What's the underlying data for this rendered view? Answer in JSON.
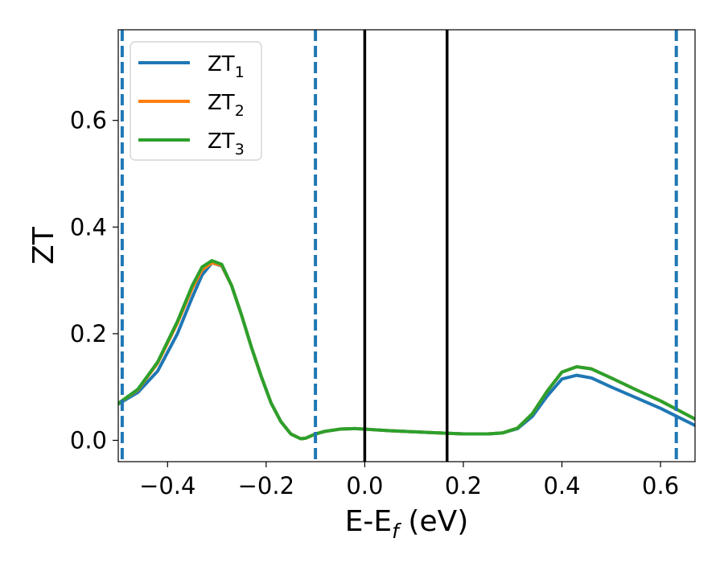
{
  "chart_data": {
    "type": "line",
    "xlabel": {
      "main": "E-E",
      "sub": "f",
      "tail": " (eV)"
    },
    "ylabel": "ZT",
    "xlim": [
      -0.5,
      0.67
    ],
    "ylim": [
      -0.04,
      0.77
    ],
    "x_ticks": [
      -0.4,
      -0.2,
      0.0,
      0.2,
      0.4,
      0.6
    ],
    "x_tick_labels": [
      "−0.4",
      "−0.2",
      "0.0",
      "0.2",
      "0.4",
      "0.6"
    ],
    "y_ticks": [
      0.0,
      0.2,
      0.4,
      0.6
    ],
    "y_tick_labels": [
      "0.0",
      "0.2",
      "0.4",
      "0.6"
    ],
    "grid": false,
    "legend": "top-left",
    "vlines": [
      {
        "x": -0.492,
        "style": "dashed",
        "color": "#1f77b4"
      },
      {
        "x": -0.1,
        "style": "dashed",
        "color": "#1f77b4"
      },
      {
        "x": 0.632,
        "style": "dashed",
        "color": "#1f77b4"
      },
      {
        "x": 0.0,
        "style": "solid",
        "color": "#000000"
      },
      {
        "x": 0.167,
        "style": "solid",
        "color": "#000000"
      }
    ],
    "series": [
      {
        "name": "ZT",
        "sub": "1",
        "color": "#1f77b4",
        "x": [
          -0.5,
          -0.46,
          -0.42,
          -0.38,
          -0.35,
          -0.33,
          -0.31,
          -0.29,
          -0.27,
          -0.25,
          -0.23,
          -0.21,
          -0.19,
          -0.17,
          -0.15,
          -0.13,
          -0.12,
          -0.11,
          -0.1,
          -0.08,
          -0.05,
          -0.02,
          0.0,
          0.05,
          0.1,
          0.15,
          0.2,
          0.25,
          0.28,
          0.31,
          0.34,
          0.37,
          0.4,
          0.43,
          0.46,
          0.5,
          0.55,
          0.6,
          0.67
        ],
        "y": [
          0.068,
          0.09,
          0.13,
          0.2,
          0.268,
          0.31,
          0.333,
          0.327,
          0.29,
          0.235,
          0.175,
          0.12,
          0.07,
          0.035,
          0.012,
          0.003,
          0.004,
          0.008,
          0.012,
          0.017,
          0.021,
          0.022,
          0.021,
          0.018,
          0.016,
          0.014,
          0.012,
          0.012,
          0.014,
          0.022,
          0.045,
          0.083,
          0.115,
          0.122,
          0.117,
          0.1,
          0.08,
          0.06,
          0.028
        ]
      },
      {
        "name": "ZT",
        "sub": "2",
        "color": "#ff7f0e",
        "x": [
          -0.5,
          -0.46,
          -0.42,
          -0.38,
          -0.35,
          -0.33,
          -0.31,
          -0.29,
          -0.27,
          -0.25,
          -0.23,
          -0.21,
          -0.19,
          -0.17,
          -0.15,
          -0.13,
          -0.12,
          -0.11,
          -0.1,
          -0.08,
          -0.05,
          -0.02,
          0.0,
          0.05,
          0.1,
          0.15,
          0.2,
          0.25,
          0.28,
          0.31,
          0.34,
          0.37,
          0.4,
          0.43,
          0.46,
          0.5,
          0.55,
          0.6,
          0.67
        ],
        "y": [
          0.069,
          0.095,
          0.145,
          0.22,
          0.285,
          0.32,
          0.333,
          0.328,
          0.29,
          0.235,
          0.175,
          0.12,
          0.07,
          0.035,
          0.012,
          0.003,
          0.004,
          0.008,
          0.012,
          0.017,
          0.021,
          0.022,
          0.021,
          0.018,
          0.016,
          0.014,
          0.012,
          0.012,
          0.014,
          0.023,
          0.05,
          0.092,
          0.128,
          0.138,
          0.134,
          0.117,
          0.095,
          0.074,
          0.04
        ]
      },
      {
        "name": "ZT",
        "sub": "3",
        "color": "#2ca02c",
        "x": [
          -0.5,
          -0.46,
          -0.42,
          -0.38,
          -0.35,
          -0.33,
          -0.31,
          -0.29,
          -0.27,
          -0.25,
          -0.23,
          -0.21,
          -0.19,
          -0.17,
          -0.15,
          -0.13,
          -0.12,
          -0.11,
          -0.1,
          -0.08,
          -0.05,
          -0.02,
          0.0,
          0.05,
          0.1,
          0.15,
          0.2,
          0.25,
          0.28,
          0.31,
          0.34,
          0.37,
          0.4,
          0.43,
          0.46,
          0.5,
          0.55,
          0.6,
          0.67
        ],
        "y": [
          0.069,
          0.096,
          0.147,
          0.223,
          0.29,
          0.325,
          0.337,
          0.33,
          0.29,
          0.235,
          0.175,
          0.12,
          0.07,
          0.035,
          0.012,
          0.003,
          0.004,
          0.008,
          0.012,
          0.017,
          0.021,
          0.022,
          0.021,
          0.018,
          0.016,
          0.014,
          0.012,
          0.012,
          0.014,
          0.023,
          0.05,
          0.092,
          0.128,
          0.138,
          0.134,
          0.117,
          0.095,
          0.074,
          0.04
        ]
      }
    ]
  }
}
